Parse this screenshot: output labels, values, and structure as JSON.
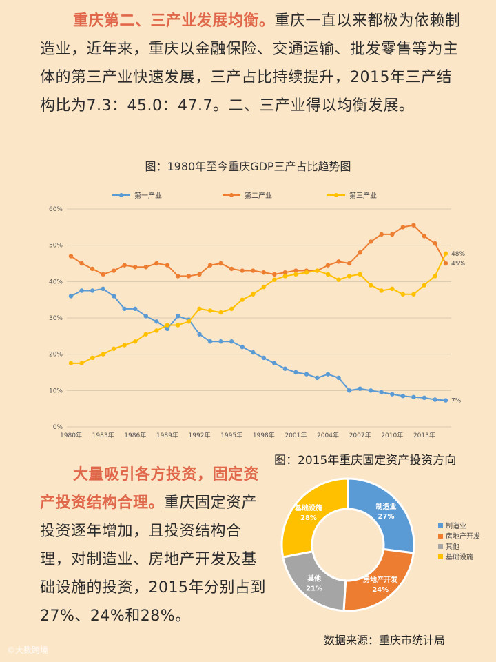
{
  "para1": {
    "heading": "重庆第二、三产业发展均衡。",
    "body": "重庆一直以来都极为依赖制造业，近年来，重庆以金融保险、交通运输、批发零售等为主体的第三产业快速发展，三产占比持续提升，2015年三产结构比为7.3：45.0：47.7。二、三产业得以均衡发展。"
  },
  "caption1": "图：1980年至今重庆GDP三产占比趋势图",
  "caption2": "图：2015年重庆固定资产投资方向",
  "para2": {
    "heading": "大量吸引各方投资，固定资产投资结构合理。",
    "body": "重庆固定资产投资逐年增加，且投资结构合理，对制造业、房地产开发及基础设施的投资，2015年分别占到27%、24%和28%。"
  },
  "source": "数据来源：重庆市统计局",
  "watermark": "©大数跨境",
  "colors": {
    "primary": "#5b9bd5",
    "secondary": "#ed7d31",
    "tertiary": "#ffc000",
    "other": "#a5a5a5"
  },
  "chart_data": [
    {
      "type": "line",
      "title": "图：1980年至今重庆GDP三产占比趋势图",
      "x": [
        1980,
        1981,
        1982,
        1983,
        1984,
        1985,
        1986,
        1987,
        1988,
        1989,
        1990,
        1991,
        1992,
        1993,
        1994,
        1995,
        1996,
        1997,
        1998,
        1999,
        2000,
        2001,
        2002,
        2003,
        2004,
        2005,
        2006,
        2007,
        2008,
        2009,
        2010,
        2011,
        2012,
        2013,
        2014,
        2015
      ],
      "xticks": [
        "1980年",
        "1983年",
        "1986年",
        "1989年",
        "1992年",
        "1995年",
        "1998年",
        "2001年",
        "2004年",
        "2007年",
        "2010年",
        "2013年"
      ],
      "xtick_years": [
        1980,
        1983,
        1986,
        1989,
        1992,
        1995,
        1998,
        2001,
        2004,
        2007,
        2010,
        2013
      ],
      "yticks": [
        "0%",
        "10%",
        "20%",
        "30%",
        "40%",
        "50%",
        "60%"
      ],
      "ylim": [
        0,
        60
      ],
      "grid": true,
      "legend": "top",
      "series": [
        {
          "name": "第一产业",
          "color": "#5b9bd5",
          "end_label": "7%",
          "values": [
            36,
            37.5,
            37.5,
            38,
            36,
            32.5,
            32.5,
            30.5,
            29,
            27,
            30.5,
            29.5,
            25.5,
            23.5,
            23.5,
            23.5,
            22,
            20.5,
            19,
            17.5,
            16,
            15,
            14.5,
            13.5,
            14.5,
            13.5,
            10,
            10.5,
            10,
            9.5,
            9,
            8.5,
            8.2,
            8,
            7.5,
            7.3
          ]
        },
        {
          "name": "第二产业",
          "color": "#ed7d31",
          "end_label": "45%",
          "values": [
            47,
            45,
            43.5,
            42,
            43,
            44.5,
            44,
            44,
            45,
            44.5,
            41.5,
            41.5,
            42,
            44.5,
            45,
            43.5,
            43,
            43,
            42.5,
            42,
            42.5,
            43,
            43,
            43,
            44.5,
            45.5,
            45,
            48,
            51,
            53,
            53,
            55,
            55.5,
            52.5,
            50.5,
            45
          ]
        },
        {
          "name": "第三产业",
          "color": "#ffc000",
          "end_label": "48%",
          "values": [
            17.5,
            17.5,
            19,
            20,
            21.5,
            22.5,
            23.5,
            25.5,
            26.5,
            28,
            28,
            29,
            32.5,
            32,
            31.5,
            32.5,
            35,
            36.5,
            38.5,
            40.5,
            41.5,
            42,
            42.5,
            43,
            42,
            40.5,
            41.5,
            42,
            39,
            37.5,
            38,
            36.5,
            36.5,
            39,
            41.5,
            47.7
          ]
        }
      ]
    },
    {
      "type": "pie",
      "title": "图：2015年重庆固定资产投资方向",
      "categories": [
        "制造业",
        "房地产开发",
        "其他",
        "基础设施"
      ],
      "values": [
        27,
        24,
        21,
        28
      ],
      "labels": [
        "27%",
        "24%",
        "21%",
        "28%"
      ],
      "colors": [
        "#5b9bd5",
        "#ed7d31",
        "#a5a5a5",
        "#ffc000"
      ],
      "legend": "right"
    }
  ]
}
